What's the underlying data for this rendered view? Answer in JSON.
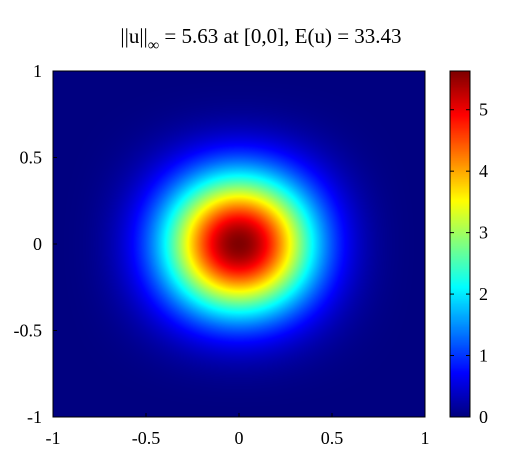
{
  "chart_data": {
    "type": "heatmap",
    "title": {
      "norm_prefix": "||u||",
      "norm_subscript": "∞",
      "rest": " = 5.63 at [0,0], E(u) = 33.43"
    },
    "xlabel": "",
    "ylabel": "",
    "xlim": [
      -1,
      1
    ],
    "ylim": [
      -1,
      1
    ],
    "x_ticks": [
      {
        "value": -1,
        "label": "-1"
      },
      {
        "value": -0.5,
        "label": "-0.5"
      },
      {
        "value": 0,
        "label": "0"
      },
      {
        "value": 0.5,
        "label": "0.5"
      },
      {
        "value": 1,
        "label": "1"
      }
    ],
    "y_ticks": [
      {
        "value": -1,
        "label": "-1"
      },
      {
        "value": -0.5,
        "label": "-0.5"
      },
      {
        "value": 0,
        "label": "0"
      },
      {
        "value": 0.5,
        "label": "0.5"
      },
      {
        "value": 1,
        "label": "1"
      }
    ],
    "peak": {
      "x": 0,
      "y": 0,
      "value": 5.63
    },
    "energy": 33.43,
    "colorbar": {
      "colormap": "jet",
      "range": [
        0,
        5.63
      ],
      "ticks": [
        {
          "value": 0,
          "label": "0"
        },
        {
          "value": 1,
          "label": "1"
        },
        {
          "value": 2,
          "label": "2"
        },
        {
          "value": 3,
          "label": "3"
        },
        {
          "value": 4,
          "label": "4"
        },
        {
          "value": 5,
          "label": "5"
        }
      ]
    },
    "grid": false,
    "legend": "none"
  }
}
